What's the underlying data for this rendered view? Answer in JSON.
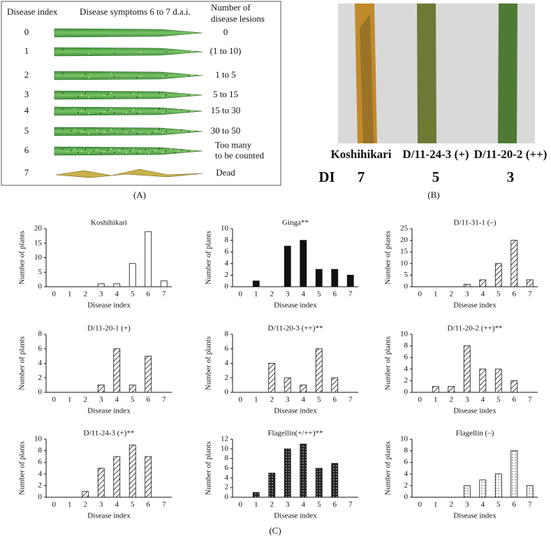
{
  "panel_a": {
    "header_index": "Disease index",
    "header_symptoms": "Disease symptoms 6 to 7 d.a.i.",
    "header_lesions": [
      "Number of",
      "disease lesions"
    ],
    "label": "(A)",
    "rows": [
      {
        "index": "0",
        "lesions": [
          "0"
        ]
      },
      {
        "index": "1",
        "lesions": [
          "(1 to 10)"
        ]
      },
      {
        "index": "2",
        "lesions": [
          "1 to 5"
        ]
      },
      {
        "index": "3",
        "lesions": [
          "5 to 15"
        ]
      },
      {
        "index": "4",
        "lesions": [
          "15 to 30"
        ]
      },
      {
        "index": "5",
        "lesions": [
          "30 to 50"
        ]
      },
      {
        "index": "6",
        "lesions": [
          "Too many",
          "to be counted"
        ]
      },
      {
        "index": "7",
        "lesions": [
          "Dead"
        ]
      }
    ]
  },
  "panel_b": {
    "lines": [
      "Koshihikari",
      "D/11-24-3 (+)",
      "D/11-20-2 (++)"
    ],
    "di_label": "DI",
    "di": [
      "7",
      "5",
      "3"
    ],
    "label": "(B)"
  },
  "panel_c_label": "(C)",
  "chart_data": [
    {
      "type": "bar",
      "title": "Koshihikari",
      "xlabel": "Disease index",
      "ylabel": "Number of plants",
      "categories": [
        "0",
        "1",
        "2",
        "3",
        "4",
        "5",
        "6",
        "7"
      ],
      "values": [
        0,
        0,
        0,
        1,
        1,
        8,
        19,
        2
      ],
      "fill": "white",
      "ylim": [
        0,
        20
      ],
      "yticks": [
        0,
        5,
        10,
        15,
        20
      ]
    },
    {
      "type": "bar",
      "title": "Ginga**",
      "xlabel": "Disease index",
      "ylabel": "Number of plants",
      "categories": [
        "0",
        "1",
        "2",
        "3",
        "4",
        "5",
        "6",
        "7"
      ],
      "values": [
        0,
        1,
        0,
        7,
        8,
        3,
        3,
        2
      ],
      "fill": "black",
      "ylim": [
        0,
        10
      ],
      "yticks": [
        0,
        2,
        4,
        6,
        8,
        10
      ]
    },
    {
      "type": "bar",
      "title": "D/11-31-1 (–)",
      "xlabel": "Disease index",
      "ylabel": "Number of plants",
      "categories": [
        "0",
        "1",
        "2",
        "3",
        "4",
        "5",
        "6",
        "7"
      ],
      "values": [
        0,
        0,
        0,
        1,
        3,
        10,
        20,
        3
      ],
      "fill": "hatch",
      "ylim": [
        0,
        25
      ],
      "yticks": [
        0,
        5,
        10,
        15,
        20,
        25
      ]
    },
    {
      "type": "bar",
      "title": "D/11-20-1 (+)",
      "xlabel": "Disease index",
      "ylabel": "Number of plants",
      "categories": [
        "0",
        "1",
        "2",
        "3",
        "4",
        "5",
        "6",
        "7"
      ],
      "values": [
        0,
        0,
        0,
        1,
        6,
        1,
        5,
        0
      ],
      "fill": "hatch",
      "ylim": [
        0,
        8
      ],
      "yticks": [
        0,
        2,
        4,
        6,
        8
      ]
    },
    {
      "type": "bar",
      "title": "D/11-20-3 (++)**",
      "xlabel": "Disease index",
      "ylabel": "Number of plants",
      "categories": [
        "0",
        "1",
        "2",
        "3",
        "4",
        "5",
        "6",
        "7"
      ],
      "values": [
        0,
        0,
        4,
        2,
        1,
        6,
        2,
        0
      ],
      "fill": "hatch",
      "ylim": [
        0,
        8
      ],
      "yticks": [
        0,
        2,
        4,
        6,
        8
      ]
    },
    {
      "type": "bar",
      "title": "D/11-20-2 (++)**",
      "xlabel": "Disease index",
      "ylabel": "Number of plants",
      "categories": [
        "0",
        "1",
        "2",
        "3",
        "4",
        "5",
        "6",
        "7"
      ],
      "values": [
        0,
        1,
        1,
        8,
        4,
        4,
        2,
        0
      ],
      "fill": "hatch",
      "ylim": [
        0,
        10
      ],
      "yticks": [
        0,
        2,
        4,
        6,
        8,
        10
      ]
    },
    {
      "type": "bar",
      "title": "D/11-24-3 (+)**",
      "xlabel": "Disease index",
      "ylabel": "Number of plants",
      "categories": [
        "0",
        "1",
        "2",
        "3",
        "4",
        "5",
        "6",
        "7"
      ],
      "values": [
        0,
        0,
        1,
        5,
        7,
        9,
        7,
        0
      ],
      "fill": "hatch",
      "ylim": [
        0,
        10
      ],
      "yticks": [
        0,
        2,
        4,
        6,
        8,
        10
      ]
    },
    {
      "type": "bar",
      "title": "Flagellin(+/++)**",
      "xlabel": "Disease index",
      "ylabel": "Number of plants",
      "categories": [
        "0",
        "1",
        "2",
        "3",
        "4",
        "5",
        "6",
        "7"
      ],
      "values": [
        0,
        1,
        5,
        10,
        11,
        6,
        7,
        0
      ],
      "fill": "dots-dark",
      "ylim": [
        0,
        12
      ],
      "yticks": [
        0,
        2,
        4,
        6,
        8,
        10,
        12
      ]
    },
    {
      "type": "bar",
      "title": "Flagellin (–)",
      "xlabel": "Disease index",
      "ylabel": "Number of plants",
      "categories": [
        "0",
        "1",
        "2",
        "3",
        "4",
        "5",
        "6",
        "7"
      ],
      "values": [
        0,
        0,
        0,
        2,
        3,
        4,
        8,
        2
      ],
      "fill": "dots-light",
      "ylim": [
        0,
        10
      ],
      "yticks": [
        0,
        2,
        4,
        6,
        8,
        10
      ]
    }
  ]
}
